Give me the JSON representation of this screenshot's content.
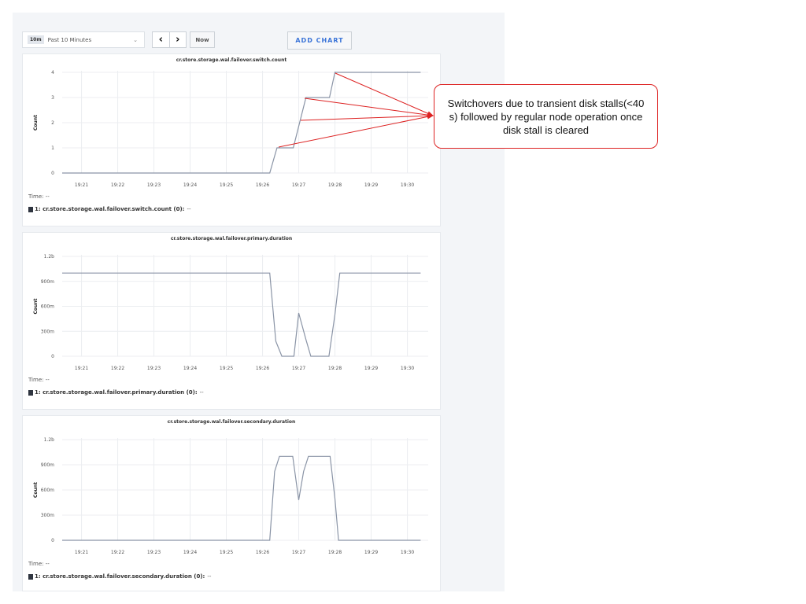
{
  "toolbar": {
    "time_badge": "10m",
    "time_range": "Past 10 Minutes",
    "prev_icon": "chevron-left-icon",
    "next_icon": "chevron-right-icon",
    "now_label": "Now",
    "add_chart_label": "ADD CHART"
  },
  "annotation": {
    "text": "Switchovers due to transient disk stalls(<40 s) followed by regular node operation once disk stall is cleared",
    "color": "#dd2222"
  },
  "chart_data": [
    {
      "type": "line",
      "title": "cr.store.storage.wal.failover.switch.count",
      "ylabel": "Count",
      "xlabel": "",
      "x_ticks": [
        "19:21",
        "19:22",
        "19:23",
        "19:24",
        "19:25",
        "19:26",
        "19:27",
        "19:28",
        "19:29",
        "19:30"
      ],
      "y_ticks": [
        {
          "v": 0,
          "label": "0"
        },
        {
          "v": 1,
          "label": "1"
        },
        {
          "v": 2,
          "label": "2"
        },
        {
          "v": 3,
          "label": "3"
        },
        {
          "v": 4,
          "label": "4"
        }
      ],
      "ylim": [
        0,
        4
      ],
      "grid": true,
      "series": [
        {
          "name": "1: cr.store.storage.wal.failover.switch.count (0):",
          "color": "#8a94a6",
          "x": [
            "19:20:28",
            "19:26:12",
            "19:26:24",
            "19:26:51",
            "19:27:12",
            "19:27:51",
            "19:28:00",
            "19:30:22"
          ],
          "y": [
            0,
            0,
            1,
            1,
            3,
            3,
            4,
            4
          ]
        }
      ],
      "time_label": "Time:",
      "time_value": "--",
      "legend_value": "--"
    },
    {
      "type": "line",
      "title": "cr.store.storage.wal.failover.primary.duration",
      "ylabel": "Count",
      "xlabel": "",
      "x_ticks": [
        "19:21",
        "19:22",
        "19:23",
        "19:24",
        "19:25",
        "19:26",
        "19:27",
        "19:28",
        "19:29",
        "19:30"
      ],
      "y_ticks": [
        {
          "v": 0,
          "label": "0"
        },
        {
          "v": 0.3,
          "label": "300m"
        },
        {
          "v": 0.6,
          "label": "600m"
        },
        {
          "v": 0.9,
          "label": "900m"
        },
        {
          "v": 1.2,
          "label": "1.2b"
        }
      ],
      "ylim": [
        0,
        1.2
      ],
      "grid": true,
      "series": [
        {
          "name": "1: cr.store.storage.wal.failover.primary.duration (0):",
          "color": "#8a94a6",
          "x": [
            "19:20:28",
            "19:26:12",
            "19:26:22",
            "19:26:32",
            "19:26:52",
            "19:27:00",
            "19:27:12",
            "19:27:20",
            "19:27:50",
            "19:28:00",
            "19:28:08",
            "19:30:22"
          ],
          "y": [
            1.0,
            1.0,
            0.18,
            0,
            0,
            0.52,
            0.2,
            0,
            0,
            0.5,
            1.0,
            1.0
          ]
        }
      ],
      "time_label": "Time:",
      "time_value": "--",
      "legend_value": "--"
    },
    {
      "type": "line",
      "title": "cr.store.storage.wal.failover.secondary.duration",
      "ylabel": "Count",
      "xlabel": "",
      "x_ticks": [
        "19:21",
        "19:22",
        "19:23",
        "19:24",
        "19:25",
        "19:26",
        "19:27",
        "19:28",
        "19:29",
        "19:30"
      ],
      "y_ticks": [
        {
          "v": 0,
          "label": "0"
        },
        {
          "v": 0.3,
          "label": "300m"
        },
        {
          "v": 0.6,
          "label": "600m"
        },
        {
          "v": 0.9,
          "label": "900m"
        },
        {
          "v": 1.2,
          "label": "1.2b"
        }
      ],
      "ylim": [
        0,
        1.2
      ],
      "grid": true,
      "series": [
        {
          "name": "1: cr.store.storage.wal.failover.secondary.duration (0):",
          "color": "#8a94a6",
          "x": [
            "19:20:28",
            "19:26:12",
            "19:26:20",
            "19:26:28",
            "19:26:50",
            "19:27:00",
            "19:27:08",
            "19:27:16",
            "19:27:52",
            "19:28:00",
            "19:28:06",
            "19:30:22"
          ],
          "y": [
            0,
            0,
            0.82,
            1.0,
            1.0,
            0.48,
            0.82,
            1.0,
            1.0,
            0.5,
            0,
            0
          ]
        }
      ],
      "time_label": "Time:",
      "time_value": "--",
      "legend_value": "--"
    }
  ]
}
